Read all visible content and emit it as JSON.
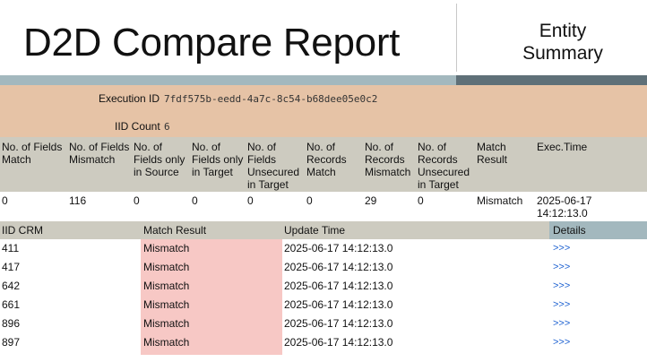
{
  "header": {
    "title": "D2D Compare Report",
    "entity_line1": "Entity",
    "entity_line2": "Summary"
  },
  "execution": {
    "id_label": "Execution ID",
    "id_value": "7fdf575b-eedd-4a7c-8c54-b68dee05e0c2",
    "count_label": "IID Count",
    "count_value": "6"
  },
  "summary": {
    "headers": [
      [
        "No. of Fields",
        "Match"
      ],
      [
        "No. of Fields",
        "Mismatch"
      ],
      [
        "No. of",
        "Fields only",
        "in Source"
      ],
      [
        "No. of",
        "Fields only",
        "in Target"
      ],
      [
        "No. of",
        "Fields",
        "Unsecured",
        "in Target"
      ],
      [
        "No. of",
        "Records",
        "Match"
      ],
      [
        "No. of",
        "Records",
        "Mismatch"
      ],
      [
        "No. of",
        "Records",
        "Unsecured",
        "in Target"
      ],
      [
        "Match",
        "Result"
      ],
      [
        "Exec.Time"
      ]
    ],
    "values": [
      "0",
      "116",
      "0",
      "0",
      "0",
      "0",
      "29",
      "0",
      "Mismatch",
      "2025-06-17",
      "14:12:13.0"
    ]
  },
  "grid": {
    "headers": [
      "IID CRM",
      "Match Result",
      "Update Time",
      "Details"
    ],
    "rows": [
      {
        "iid": "411",
        "result": "Mismatch",
        "time": "2025-06-17 14:12:13.0",
        "details": ">>>"
      },
      {
        "iid": "417",
        "result": "Mismatch",
        "time": "2025-06-17 14:12:13.0",
        "details": ">>>"
      },
      {
        "iid": "642",
        "result": "Mismatch",
        "time": "2025-06-17 14:12:13.0",
        "details": ">>>"
      },
      {
        "iid": "661",
        "result": "Mismatch",
        "time": "2025-06-17 14:12:13.0",
        "details": ">>>"
      },
      {
        "iid": "896",
        "result": "Mismatch",
        "time": "2025-06-17 14:12:13.0",
        "details": ">>>"
      },
      {
        "iid": "897",
        "result": "Mismatch",
        "time": "2025-06-17 14:12:13.0",
        "details": ">>>"
      }
    ]
  }
}
